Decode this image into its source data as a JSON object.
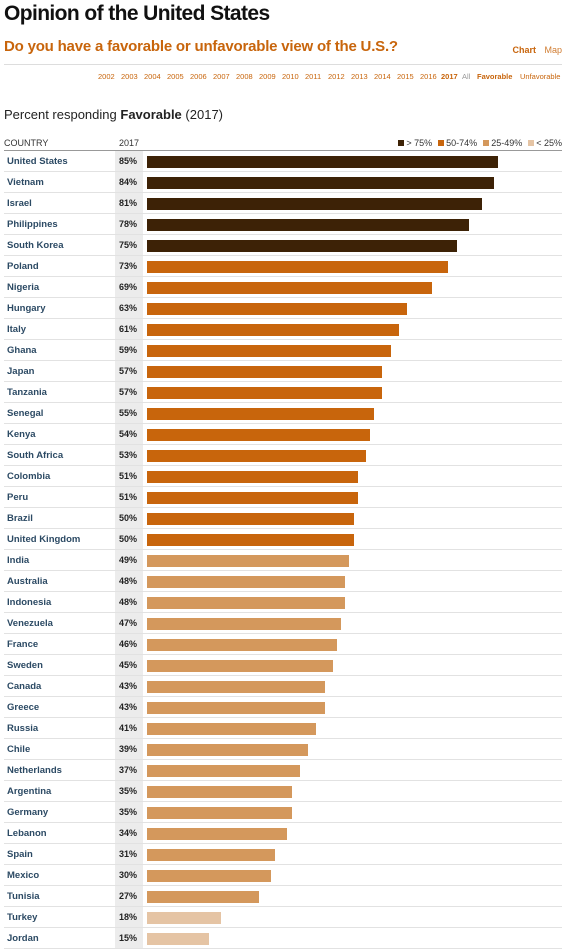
{
  "header": {
    "title": "Opinion of the United States",
    "question": "Do you have a favorable or unfavorable view of the U.S.?",
    "views": [
      "Chart",
      "Map"
    ],
    "active_view": "Chart"
  },
  "year_selector": {
    "years": [
      "2002",
      "2003",
      "2004",
      "2005",
      "2006",
      "2007",
      "2008",
      "2009",
      "2010",
      "2011",
      "2012",
      "2013",
      "2014",
      "2015",
      "2016",
      "2017"
    ],
    "selected": "2017",
    "extra": [
      "All"
    ],
    "measures": [
      "Favorable",
      "Unfavorable"
    ],
    "selected_measure": "Favorable"
  },
  "subtitle": {
    "prefix": "Percent responding",
    "measure": "Favorable",
    "year": "(2017)"
  },
  "table": {
    "country_header": "COUNTRY",
    "year_header": "2017"
  },
  "legend": [
    {
      "label": "> 75%",
      "color": "#3d2206"
    },
    {
      "label": "50-74%",
      "color": "#c8650c"
    },
    {
      "label": "25-49%",
      "color": "#d4985c"
    },
    {
      "label": "< 25%",
      "color": "#e5c4a4"
    }
  ],
  "chart_data": {
    "type": "bar",
    "orientation": "horizontal",
    "title": "Opinion of the United States",
    "subtitle": "Percent responding Favorable (2017)",
    "xlim": [
      0,
      100
    ],
    "categories": [
      "United States",
      "Vietnam",
      "Israel",
      "Philippines",
      "South Korea",
      "Poland",
      "Nigeria",
      "Hungary",
      "Italy",
      "Ghana",
      "Japan",
      "Tanzania",
      "Senegal",
      "Kenya",
      "South Africa",
      "Colombia",
      "Peru",
      "Brazil",
      "United Kingdom",
      "India",
      "Australia",
      "Indonesia",
      "Venezuela",
      "France",
      "Sweden",
      "Canada",
      "Greece",
      "Russia",
      "Chile",
      "Netherlands",
      "Argentina",
      "Germany",
      "Lebanon",
      "Spain",
      "Mexico",
      "Tunisia",
      "Turkey",
      "Jordan"
    ],
    "values": [
      85,
      84,
      81,
      78,
      75,
      73,
      69,
      63,
      61,
      59,
      57,
      57,
      55,
      54,
      53,
      51,
      51,
      50,
      50,
      49,
      48,
      48,
      47,
      46,
      45,
      43,
      43,
      41,
      39,
      37,
      35,
      35,
      34,
      31,
      30,
      27,
      18,
      15
    ],
    "value_labels": [
      "85%",
      "84%",
      "81%",
      "78%",
      "75%",
      "73%",
      "69%",
      "63%",
      "61%",
      "59%",
      "57%",
      "57%",
      "55%",
      "54%",
      "53%",
      "51%",
      "51%",
      "50%",
      "50%",
      "49%",
      "48%",
      "48%",
      "47%",
      "46%",
      "45%",
      "43%",
      "43%",
      "41%",
      "39%",
      "37%",
      "35%",
      "35%",
      "34%",
      "31%",
      "30%",
      "27%",
      "18%",
      "15%"
    ]
  }
}
